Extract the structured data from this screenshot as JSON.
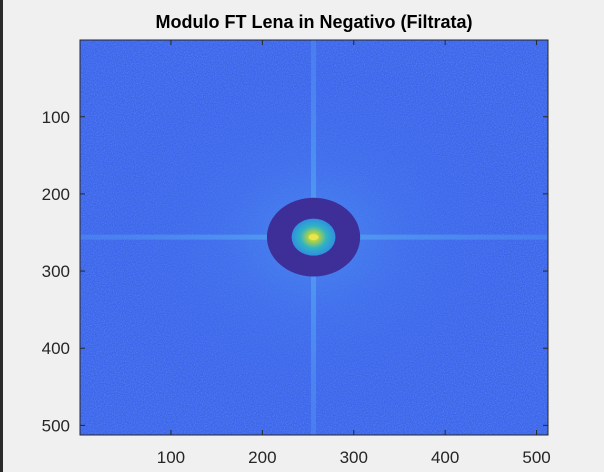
{
  "chart_data": {
    "type": "heatmap",
    "title": "Modulo FT Lena in Negativo (Filtrata)",
    "xlabel": "",
    "ylabel": "",
    "xlim": [
      0.5,
      512.5
    ],
    "ylim": [
      0.5,
      512.5
    ],
    "y_direction": "reverse",
    "x_ticks": [
      100,
      200,
      300,
      400,
      500
    ],
    "y_ticks": [
      100,
      200,
      300,
      400,
      500
    ],
    "image_size": [
      512,
      512
    ],
    "colormap": "parula",
    "colors": {
      "background_level": "#3a64ea",
      "ring_mask": "#3e2f98",
      "cross_streak": "#4b86ee",
      "center_peak": "#e8e64a",
      "center_glow": "#35b6c8",
      "figure_bg": "#f0f0f0"
    },
    "features": {
      "center": [
        256,
        256
      ],
      "annular_mask": {
        "inner_radius": 24,
        "outer_radius": 51
      },
      "cross_streaks": "horizontal and vertical lines through center"
    }
  }
}
